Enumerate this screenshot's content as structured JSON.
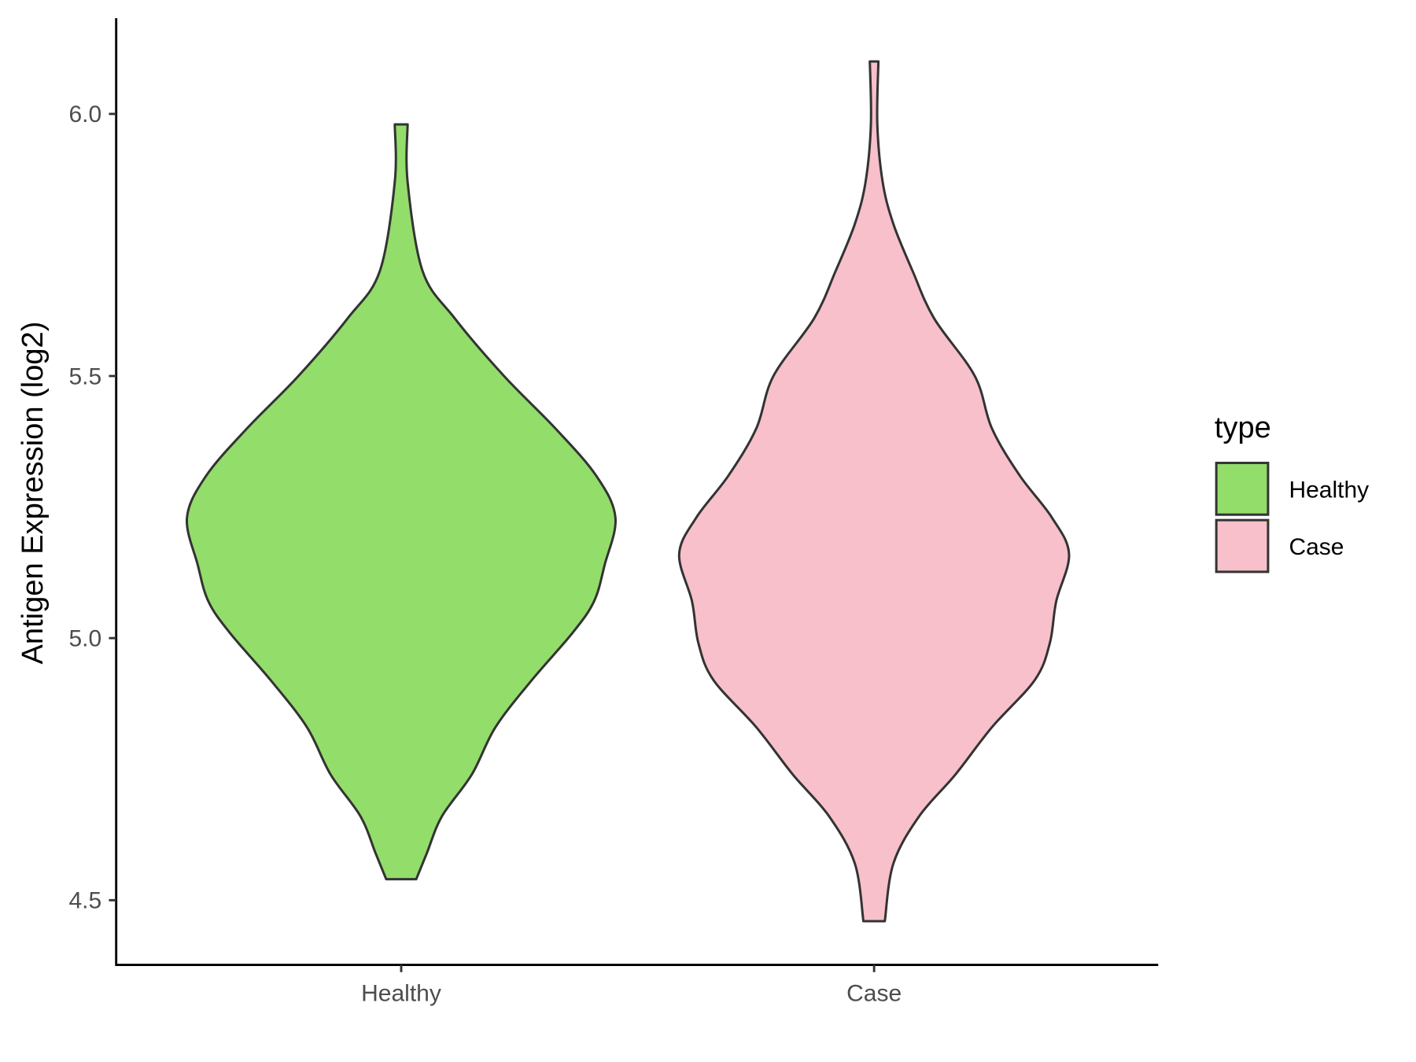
{
  "chart_data": {
    "type": "violin",
    "title": "",
    "xlabel": "",
    "ylabel": "Antigen Expression (log2)",
    "ylim": [
      4.38,
      6.18
    ],
    "yticks": [
      "4.5",
      "5.0",
      "5.5",
      "6.0"
    ],
    "categories": [
      "Healthy",
      "Case"
    ],
    "grid": false,
    "legend": {
      "title": "type",
      "position": "right",
      "entries": [
        "Healthy",
        "Case"
      ]
    },
    "series": [
      {
        "name": "Healthy",
        "color": "#93DD6A",
        "min": 4.54,
        "max": 5.98,
        "profile": [
          [
            5.98,
            0.03
          ],
          [
            5.87,
            0.03
          ],
          [
            5.7,
            0.1
          ],
          [
            5.61,
            0.25
          ],
          [
            5.5,
            0.48
          ],
          [
            5.4,
            0.72
          ],
          [
            5.31,
            0.91
          ],
          [
            5.23,
            1.0
          ],
          [
            5.14,
            0.95
          ],
          [
            5.07,
            0.9
          ],
          [
            5.01,
            0.8
          ],
          [
            4.92,
            0.61
          ],
          [
            4.83,
            0.44
          ],
          [
            4.74,
            0.33
          ],
          [
            4.66,
            0.19
          ],
          [
            4.59,
            0.12
          ],
          [
            4.54,
            0.07
          ]
        ]
      },
      {
        "name": "Case",
        "color": "#F7C0CB",
        "min": 4.46,
        "max": 6.1,
        "profile": [
          [
            6.1,
            0.02
          ],
          [
            5.98,
            0.015
          ],
          [
            5.87,
            0.04
          ],
          [
            5.79,
            0.09
          ],
          [
            5.7,
            0.18
          ],
          [
            5.61,
            0.28
          ],
          [
            5.5,
            0.47
          ],
          [
            5.4,
            0.55
          ],
          [
            5.31,
            0.68
          ],
          [
            5.23,
            0.83
          ],
          [
            5.16,
            0.91
          ],
          [
            5.07,
            0.85
          ],
          [
            4.99,
            0.82
          ],
          [
            4.92,
            0.75
          ],
          [
            4.83,
            0.55
          ],
          [
            4.74,
            0.38
          ],
          [
            4.66,
            0.21
          ],
          [
            4.57,
            0.09
          ],
          [
            4.46,
            0.05
          ]
        ]
      }
    ],
    "outline_color": "#333333"
  }
}
